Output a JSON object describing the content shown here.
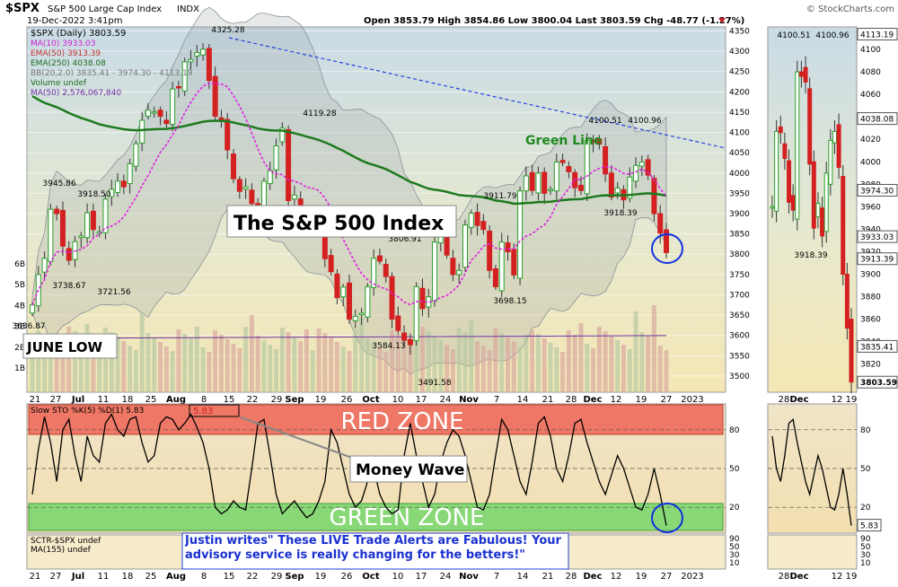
{
  "header": {
    "symbol": "$SPX",
    "name": "S&P 500 Large Cap Index",
    "exchange": "INDX",
    "date_time": "19-Dec-2022 3:41pm",
    "ohlc": "Open 3853.79  High 3854.86  Low 3800.04  Last 3803.59  Chg -48.77 (-1.27%)",
    "watermark": "© StockCharts.com"
  },
  "legend": {
    "price": "$SPX (Daily) 3803.59",
    "ma10": "MA(10) 3933.03",
    "ema50": "EMA(50) 3913.39",
    "ema250": "EMA(250) 4038.08",
    "bb": "BB(20,2.0) 3835.41 - 3974.30 - 4113.19",
    "volume": "Volume undef",
    "ma50": "MA(50) 2,576,067,840"
  },
  "annotations": {
    "title_box": "The S&P 500 Index",
    "green_line": "Green Line",
    "june_low": "JUNE LOW",
    "red_zone": "RED ZONE",
    "green_zone": "GREEN ZONE",
    "money_wave": "Money Wave",
    "quote": "Justin writes\" These LIVE Trade Alerts are Fabulous! Your advisory service is really changing for the betters!\""
  },
  "osc_legend": {
    "sto": "Slow STO %K(5) %D(1) 5.83",
    "sto_value": "5.83",
    "sctr": "SCTR-$SPX undef",
    "ma155": "MA(155) undef"
  },
  "colors": {
    "up": "#2aa02a",
    "down": "#d42020",
    "ma10": "#e020e0",
    "ema250": "#1e7a1e",
    "trend": "#2040e0",
    "red_zone": "#ee7766",
    "green_zone": "#88d877"
  },
  "chart_data": [
    {
      "type": "candlestick",
      "title": "$SPX S&P 500 Large Cap Index",
      "ylim": [
        3460,
        4360
      ],
      "y_ticks": [
        3500,
        3550,
        3600,
        3650,
        3700,
        3750,
        3800,
        3850,
        3900,
        3950,
        4000,
        4050,
        4100,
        4150,
        4200,
        4250,
        4300,
        4350
      ],
      "volume_ticks": [
        "6B",
        "5B",
        "4B",
        "3B",
        "2B",
        "1B"
      ],
      "x_ticks": [
        "21",
        "27",
        "Jul",
        "11",
        "18",
        "25",
        "Aug",
        "8",
        "15",
        "22",
        "29",
        "Sep",
        "19",
        "26",
        "Oct",
        "10",
        "17",
        "24",
        "Nov",
        "7",
        "14",
        "21",
        "28",
        "Dec",
        "12",
        "19",
        "27",
        "2023"
      ],
      "price_labels": [
        "4325.28",
        "4119.28",
        "3945.86",
        "3918.50",
        "3738.67",
        "3721.56",
        "3636.87",
        "3806.91",
        "3584.13",
        "3491.58",
        "3911.79",
        "3698.15",
        "4100.51",
        "4100.96",
        "3918.39"
      ],
      "axis_boxes": [
        "3933.03",
        "3913.39",
        "3835.41"
      ],
      "series": [
        {
          "name": "$SPX",
          "values": [
            3675,
            3750,
            3790,
            3911,
            3900,
            3820,
            3785,
            3831,
            3845,
            3902,
            3861,
            3855,
            3936,
            3960,
            3980,
            3966,
            4023,
            4072,
            4130,
            4155,
            4151,
            4140,
            4122,
            4207,
            4210,
            4274,
            4280,
            4297,
            4305,
            4228,
            4140,
            4128,
            4057,
            3986,
            3955,
            3966,
            3925,
            3908,
            3980,
            4006,
            4067,
            4111,
            3932,
            3946,
            3902,
            3873,
            3900,
            3855,
            3789,
            3757,
            3693,
            3719,
            3640,
            3647,
            3655,
            3720,
            3790,
            3783,
            3745,
            3640,
            3612,
            3588,
            3577,
            3720,
            3666,
            3695,
            3830,
            3859,
            3798,
            3750,
            3760,
            3872,
            3901,
            3871,
            3861,
            3760,
            3720,
            3830,
            3806,
            3749,
            3956,
            3993,
            3957,
            4000,
            3950,
            3960,
            4027,
            4026,
            4003,
            3964,
            3957,
            4080,
            4076,
            4071,
            3998,
            3941,
            3963,
            3934,
            3990,
            4019,
            4027,
            3995,
            3900,
            3852,
            3804
          ]
        },
        {
          "name": "MA(10)",
          "values": []
        },
        {
          "name": "EMA(250)",
          "values": []
        }
      ]
    },
    {
      "type": "line",
      "title": "Slow STO %K(5) %D(1)",
      "ylim": [
        0,
        100
      ],
      "y_ticks": [
        80,
        50,
        20
      ],
      "series": [
        {
          "name": "Slow STO",
          "values": [
            30,
            65,
            90,
            70,
            40,
            80,
            88,
            60,
            40,
            75,
            60,
            55,
            85,
            92,
            80,
            75,
            88,
            90,
            70,
            55,
            60,
            85,
            90,
            88,
            80,
            85,
            92,
            82,
            70,
            50,
            20,
            15,
            18,
            25,
            20,
            18,
            50,
            85,
            88,
            60,
            30,
            15,
            20,
            25,
            18,
            12,
            15,
            25,
            40,
            80,
            70,
            50,
            30,
            20,
            25,
            40,
            50,
            30,
            20,
            15,
            18,
            60,
            85,
            60,
            40,
            20,
            30,
            55,
            70,
            80,
            75,
            60,
            40,
            20,
            18,
            30,
            60,
            88,
            80,
            60,
            40,
            30,
            55,
            85,
            90,
            75,
            50,
            40,
            60,
            85,
            88,
            70,
            55,
            40,
            30,
            45,
            60,
            50,
            35,
            20,
            18,
            30,
            50,
            30,
            5.83
          ]
        }
      ]
    },
    {
      "type": "line",
      "title": "SCTR-$SPX",
      "y_ticks": [
        90,
        50,
        30,
        10
      ],
      "series": []
    }
  ],
  "side_chart": {
    "x_ticks": [
      "28",
      "Dec",
      "12",
      "19"
    ],
    "y_ticks": [
      "4113.19",
      "4100",
      "4080",
      "4060",
      "4038.08",
      "4020",
      "4000",
      "3980",
      "3974.30",
      "3960",
      "3940",
      "3933.03",
      "3920",
      "3913.39",
      "3900",
      "3880",
      "3860",
      "3840",
      "3835.41",
      "3820",
      "3803.59"
    ],
    "labels": [
      "4100.51",
      "4100.96",
      "3918.39"
    ]
  }
}
